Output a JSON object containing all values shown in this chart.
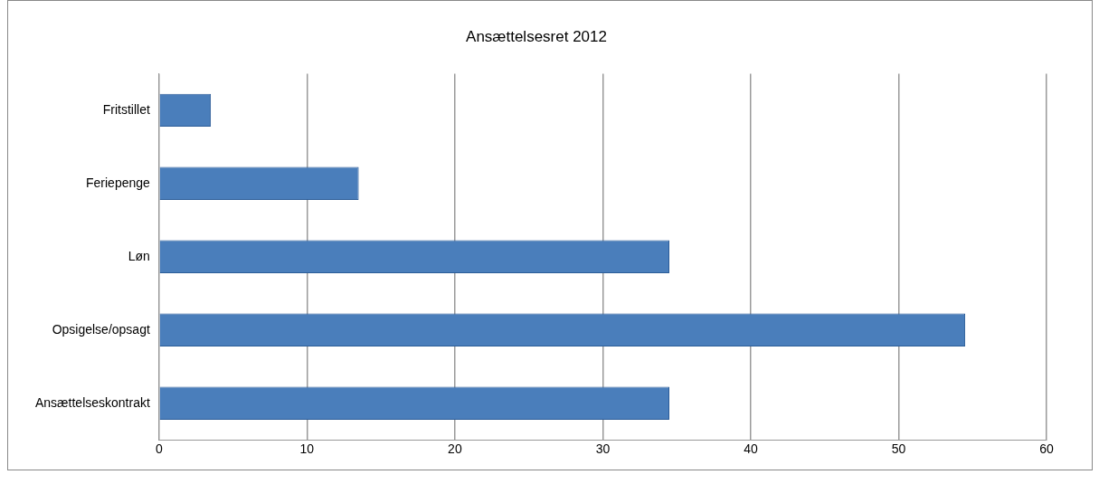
{
  "chart_data": {
    "type": "bar",
    "orientation": "horizontal",
    "title": "Ansættelsesret 2012",
    "categories": [
      "Fritstillet",
      "Feriepenge",
      "Løn",
      "Opsigelse/opsagt",
      "Ansættelseskontrakt"
    ],
    "values": [
      3.5,
      13.5,
      34.5,
      54.5,
      34.5
    ],
    "color": "#4a7ebb",
    "xlim": [
      0,
      60
    ],
    "xticks": [
      0,
      10,
      20,
      30,
      40,
      50,
      60
    ],
    "grid": "x"
  }
}
